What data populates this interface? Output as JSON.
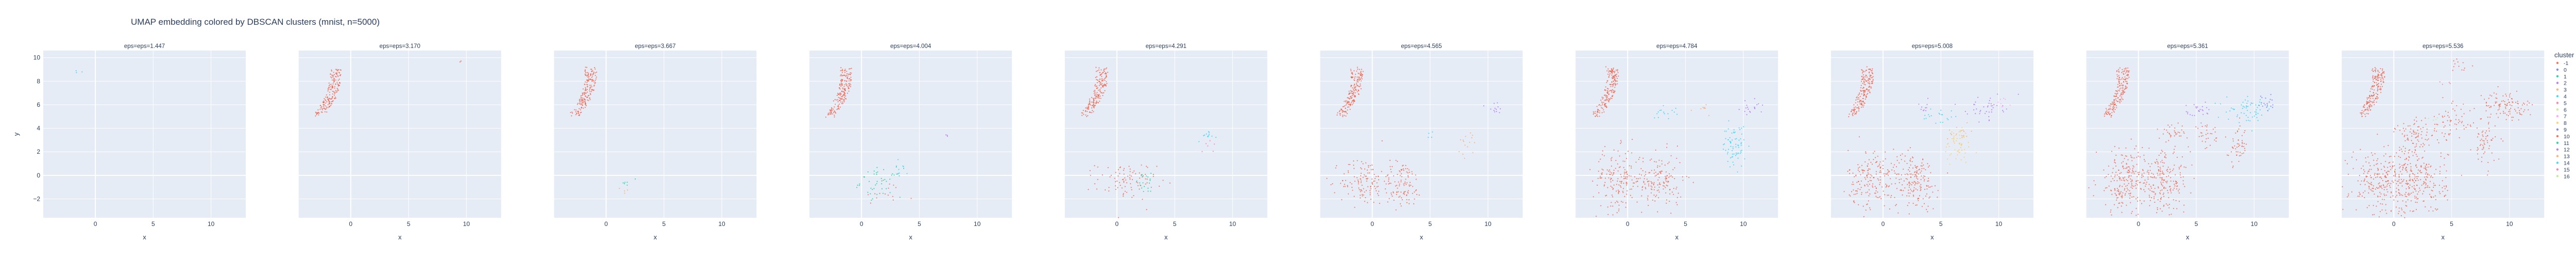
{
  "chart_data": {
    "type": "scatter",
    "title": "UMAP embedding colored by DBSCAN clusters (mnist, n=5000)",
    "xlabel": "x",
    "ylabel": "y",
    "xlim": [
      -4.5,
      13
    ],
    "ylim": [
      -3.6,
      10.6
    ],
    "x_ticks": [
      0,
      5,
      10
    ],
    "y_ticks": [
      -2,
      0,
      2,
      4,
      6,
      8,
      10
    ],
    "grid": true,
    "legend": {
      "title": "cluster",
      "position": "right",
      "entries": [
        "-1",
        "0",
        "1",
        "2",
        "3",
        "4",
        "5",
        "6",
        "7",
        "8",
        "9",
        "10",
        "11",
        "12",
        "13",
        "14",
        "15",
        "16"
      ]
    },
    "colors": {
      "-1": "#ef553b",
      "0": "#636efa",
      "1": "#00cc96",
      "2": "#ab63fa",
      "3": "#ffa15a",
      "4": "#19d3f3",
      "5": "#ff6692",
      "6": "#b6e880",
      "7": "#ff97ff",
      "8": "#fecb52",
      "9": "#636efa",
      "10": "#ef553b",
      "11": "#00cc96",
      "12": "#ab63fa",
      "13": "#ffa15a",
      "14": "#19d3f3",
      "15": "#ff6692",
      "16": "#b6e880"
    },
    "panels": [
      {
        "title": "eps=eps=1.447",
        "clusters": [
          {
            "cluster": "4",
            "x": -1.7,
            "y": 8.9,
            "count": 3,
            "sx": 0.2,
            "sy": 0.15
          }
        ]
      },
      {
        "title": "eps=eps=3.170",
        "clusters": [
          {
            "cluster": "-1",
            "shape": "arc",
            "count": 180
          },
          {
            "cluster": "-1",
            "x": 9.5,
            "y": 9.6,
            "count": 2,
            "sx": 0.1,
            "sy": 0.1
          }
        ]
      },
      {
        "title": "eps=eps=3.667",
        "clusters": [
          {
            "cluster": "-1",
            "shape": "arc",
            "count": 180
          },
          {
            "cluster": "1",
            "x": 2.3,
            "y": -0.6,
            "count": 6,
            "sx": 0.4,
            "sy": 0.3
          },
          {
            "cluster": "3",
            "x": 1.8,
            "y": -1.2,
            "count": 4,
            "sx": 0.3,
            "sy": 0.2
          }
        ]
      },
      {
        "title": "eps=eps=4.004",
        "clusters": [
          {
            "cluster": "-1",
            "shape": "arc",
            "count": 180
          },
          {
            "cluster": "1",
            "x": 1.7,
            "y": -0.6,
            "count": 45,
            "sx": 0.9,
            "sy": 0.6
          },
          {
            "cluster": "4",
            "x": 3.5,
            "y": 0.6,
            "count": 8,
            "sx": 0.5,
            "sy": 0.4
          },
          {
            "cluster": "2",
            "x": 7.4,
            "y": 3.5,
            "count": 3,
            "sx": 0.2,
            "sy": 0.2
          },
          {
            "cluster": "-1",
            "x": 2.0,
            "y": -1.8,
            "count": 15,
            "sx": 1.3,
            "sy": 0.7
          }
        ]
      },
      {
        "title": "eps=eps=4.291",
        "clusters": [
          {
            "cluster": "-1",
            "shape": "arc",
            "count": 180
          },
          {
            "cluster": "-1",
            "x": 0.8,
            "y": -0.5,
            "count": 90,
            "sx": 1.3,
            "sy": 0.8
          },
          {
            "cluster": "1",
            "x": 2.5,
            "y": -0.7,
            "count": 20,
            "sx": 0.6,
            "sy": 0.4
          },
          {
            "cluster": "4",
            "x": 7.8,
            "y": 3.5,
            "count": 12,
            "sx": 0.4,
            "sy": 0.3
          },
          {
            "cluster": "5",
            "x": 8.0,
            "y": 2.6,
            "count": 6,
            "sx": 0.3,
            "sy": 0.3
          }
        ]
      },
      {
        "title": "eps=eps=4.565",
        "clusters": [
          {
            "cluster": "-1",
            "shape": "arc",
            "count": 180
          },
          {
            "cluster": "-1",
            "x": -0.8,
            "y": -0.5,
            "count": 120,
            "sx": 1.0,
            "sy": 1.0
          },
          {
            "cluster": "-1",
            "x": 2.6,
            "y": -0.8,
            "count": 110,
            "sx": 0.9,
            "sy": 1.0
          },
          {
            "cluster": "3",
            "x": 8.2,
            "y": 2.6,
            "count": 15,
            "sx": 0.4,
            "sy": 0.6
          },
          {
            "cluster": "2",
            "x": 10.5,
            "y": 5.8,
            "count": 12,
            "sx": 0.6,
            "sy": 0.3
          },
          {
            "cluster": "4",
            "x": 5.0,
            "y": 3.5,
            "count": 4,
            "sx": 0.3,
            "sy": 0.3
          }
        ]
      },
      {
        "title": "eps=eps=4.784",
        "clusters": [
          {
            "cluster": "-1",
            "shape": "arc",
            "count": 180
          },
          {
            "cluster": "-1",
            "x": -0.8,
            "y": -0.3,
            "count": 170,
            "sx": 1.1,
            "sy": 1.3
          },
          {
            "cluster": "-1",
            "x": 2.8,
            "y": -0.5,
            "count": 150,
            "sx": 1.0,
            "sy": 1.2
          },
          {
            "cluster": "4",
            "x": 9.2,
            "y": 2.5,
            "count": 70,
            "sx": 0.5,
            "sy": 0.9
          },
          {
            "cluster": "4",
            "x": 3.2,
            "y": 5.4,
            "count": 15,
            "sx": 0.5,
            "sy": 0.3
          },
          {
            "cluster": "2",
            "x": 10.6,
            "y": 5.8,
            "count": 18,
            "sx": 0.6,
            "sy": 0.3
          },
          {
            "cluster": "3",
            "x": 6.7,
            "y": 5.6,
            "count": 8,
            "sx": 0.4,
            "sy": 0.3
          }
        ]
      },
      {
        "title": "eps=eps=5.008",
        "clusters": [
          {
            "cluster": "-1",
            "shape": "arc",
            "count": 180
          },
          {
            "cluster": "-1",
            "x": -0.8,
            "y": -0.3,
            "count": 190,
            "sx": 1.1,
            "sy": 1.3
          },
          {
            "cluster": "-1",
            "x": 2.8,
            "y": -0.5,
            "count": 170,
            "sx": 1.0,
            "sy": 1.2
          },
          {
            "cluster": "4",
            "x": 4.8,
            "y": 5.0,
            "count": 20,
            "sx": 0.7,
            "sy": 0.4
          },
          {
            "cluster": "8",
            "x": 6.5,
            "y": 2.6,
            "count": 55,
            "sx": 0.6,
            "sy": 0.8
          },
          {
            "cluster": "13",
            "x": 6.6,
            "y": 3.6,
            "count": 15,
            "sx": 0.5,
            "sy": 0.3
          },
          {
            "cluster": "2",
            "x": 8.8,
            "y": 5.8,
            "count": 40,
            "sx": 0.8,
            "sy": 0.5
          },
          {
            "cluster": "12",
            "x": 3.6,
            "y": 5.7,
            "count": 10,
            "sx": 0.4,
            "sy": 0.3
          },
          {
            "cluster": "7",
            "x": 10.3,
            "y": 6.0,
            "count": 8,
            "sx": 0.3,
            "sy": 0.3
          }
        ]
      },
      {
        "title": "eps=eps=5.361",
        "clusters": [
          {
            "cluster": "-1",
            "shape": "arc",
            "count": 180
          },
          {
            "cluster": "-1",
            "x": -1.0,
            "y": -0.5,
            "count": 230,
            "sx": 1.3,
            "sy": 1.4
          },
          {
            "cluster": "-1",
            "x": 2.2,
            "y": -0.5,
            "count": 200,
            "sx": 1.1,
            "sy": 1.3
          },
          {
            "cluster": "-1",
            "x": 3.0,
            "y": 3.7,
            "count": 30,
            "sx": 0.6,
            "sy": 0.3
          },
          {
            "cluster": "-1",
            "x": 6.0,
            "y": 3.2,
            "count": 30,
            "sx": 0.6,
            "sy": 0.5
          },
          {
            "cluster": "-1",
            "x": 8.6,
            "y": 2.5,
            "count": 50,
            "sx": 0.4,
            "sy": 0.8
          },
          {
            "cluster": "2",
            "x": 5.2,
            "y": 5.5,
            "count": 25,
            "sx": 0.6,
            "sy": 0.4
          },
          {
            "cluster": "4",
            "x": 9.6,
            "y": 5.5,
            "count": 60,
            "sx": 1.0,
            "sy": 0.5
          },
          {
            "cluster": "9",
            "x": 11.0,
            "y": 6.1,
            "count": 20,
            "sx": 0.5,
            "sy": 0.3
          }
        ]
      },
      {
        "title": "eps=eps=5.536",
        "clusters": [
          {
            "cluster": "-1",
            "shape": "arc",
            "count": 180
          },
          {
            "cluster": "-1",
            "x": -1.0,
            "y": -0.5,
            "count": 260,
            "sx": 1.4,
            "sy": 1.5
          },
          {
            "cluster": "-1",
            "x": 2.2,
            "y": -0.5,
            "count": 230,
            "sx": 1.2,
            "sy": 1.4
          },
          {
            "cluster": "-1",
            "x": 1.9,
            "y": 3.4,
            "count": 80,
            "sx": 0.9,
            "sy": 0.7
          },
          {
            "cluster": "-1",
            "x": 4.8,
            "y": 4.4,
            "count": 60,
            "sx": 0.9,
            "sy": 0.8
          },
          {
            "cluster": "-1",
            "x": 7.8,
            "y": 2.6,
            "count": 60,
            "sx": 0.5,
            "sy": 0.9
          },
          {
            "cluster": "-1",
            "x": 9.7,
            "y": 5.9,
            "count": 110,
            "sx": 1.2,
            "sy": 0.6
          },
          {
            "cluster": "-1",
            "x": 5.8,
            "y": 9.3,
            "count": 12,
            "sx": 0.5,
            "sy": 0.4
          },
          {
            "cluster": "15",
            "x": 4.5,
            "y": 7.8,
            "count": 4,
            "sx": 0.3,
            "sy": 0.2
          },
          {
            "cluster": "16",
            "x": 3.5,
            "y": 4.8,
            "count": 4,
            "sx": 0.3,
            "sy": 0.2
          }
        ]
      }
    ]
  }
}
